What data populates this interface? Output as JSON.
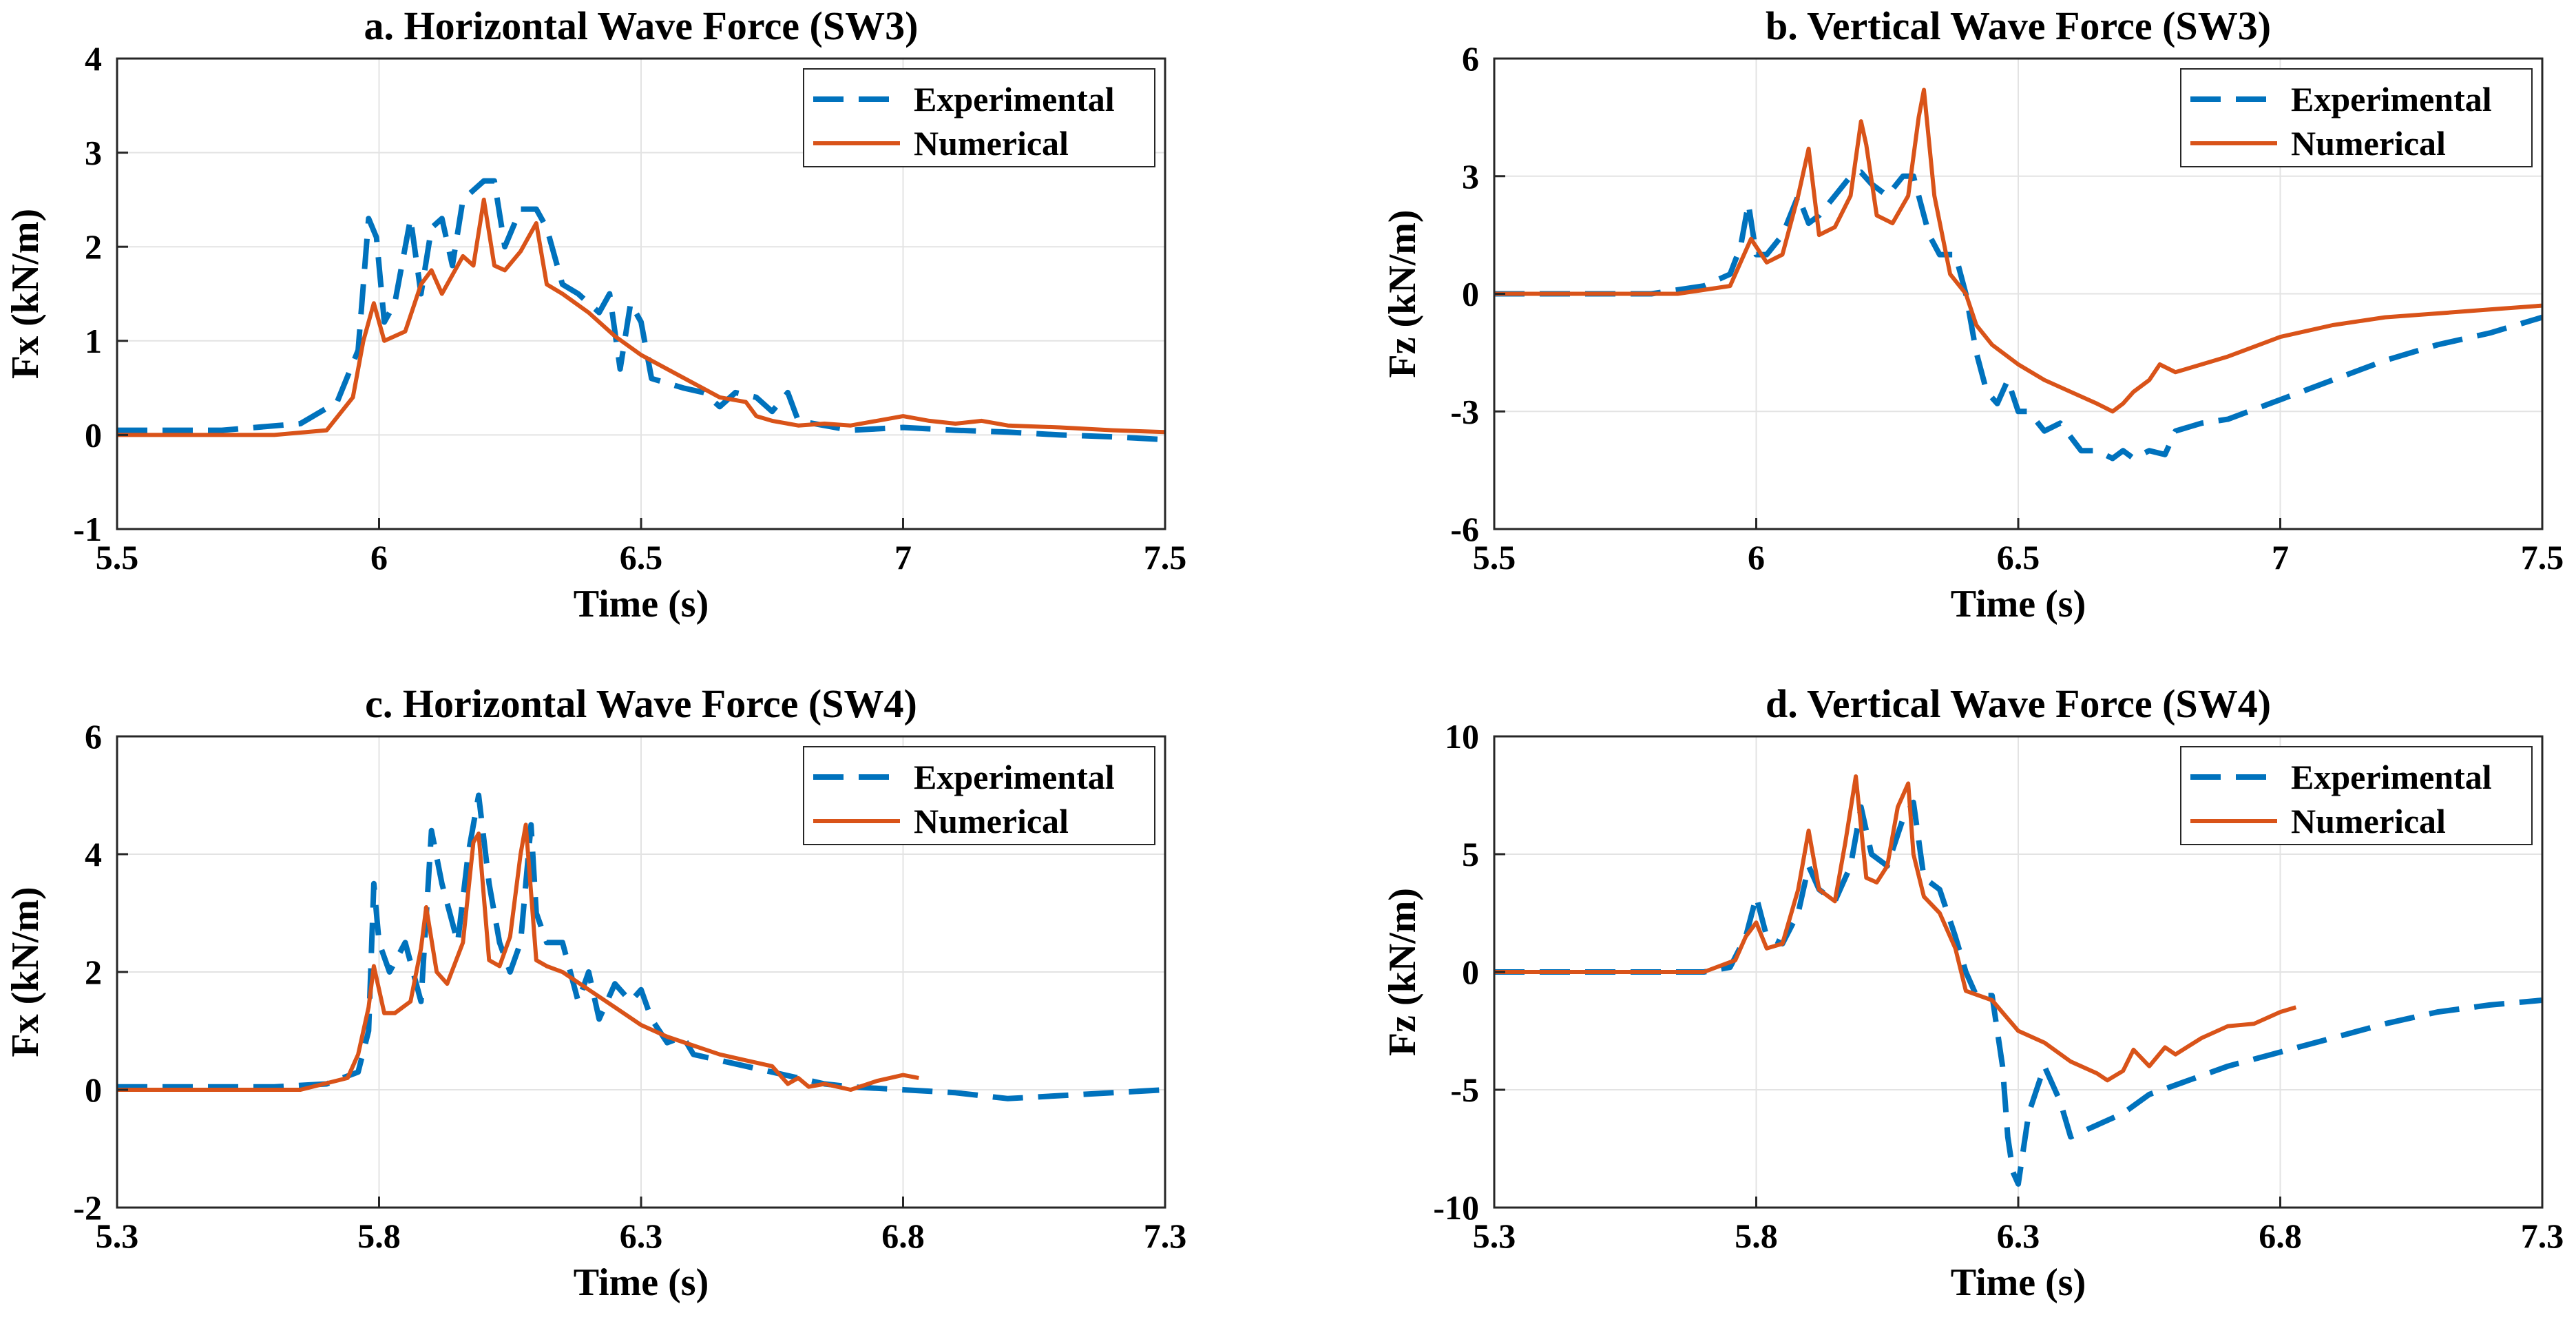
{
  "figure": {
    "description_colors": {
      "experimental": "#0072BD",
      "numerical": "#D95319"
    }
  },
  "chart_data": [
    {
      "type": "line",
      "title": "a. Horizontal Wave Force (SW3)",
      "xlabel": "Time (s)",
      "ylabel": "Fx (kN/m)",
      "xlim": [
        5.5,
        7.5
      ],
      "ylim": [
        -1,
        4
      ],
      "xticks": [
        5.5,
        6,
        6.5,
        7,
        7.5
      ],
      "xtick_labels": [
        "5.5",
        "6",
        "6.5",
        "7",
        "7.5"
      ],
      "yticks": [
        -1,
        0,
        1,
        2,
        3,
        4
      ],
      "ytick_labels": [
        "-1",
        "0",
        "1",
        "2",
        "3",
        "4"
      ],
      "grid": true,
      "legend": "top-right",
      "series": [
        {
          "name": "Experimental",
          "color": "#0072BD",
          "style": "dashed",
          "x": [
            5.5,
            5.7,
            5.85,
            5.92,
            5.96,
            5.98,
            5.995,
            6.01,
            6.03,
            6.06,
            6.08,
            6.1,
            6.12,
            6.14,
            6.16,
            6.18,
            6.2,
            6.22,
            6.24,
            6.27,
            6.3,
            6.32,
            6.35,
            6.38,
            6.4,
            6.42,
            6.44,
            6.46,
            6.48,
            6.5,
            6.52,
            6.55,
            6.58,
            6.62,
            6.65,
            6.68,
            6.72,
            6.75,
            6.78,
            6.8,
            6.85,
            6.9,
            7.0,
            7.1,
            7.2,
            7.3,
            7.4,
            7.5
          ],
          "y": [
            0.05,
            0.05,
            0.12,
            0.35,
            0.9,
            2.3,
            2.1,
            1.2,
            1.4,
            2.3,
            1.5,
            2.2,
            2.3,
            1.8,
            2.5,
            2.6,
            2.7,
            2.7,
            2.0,
            2.4,
            2.4,
            2.2,
            1.6,
            1.5,
            1.4,
            1.3,
            1.5,
            0.7,
            1.4,
            1.2,
            0.6,
            0.55,
            0.5,
            0.45,
            0.3,
            0.45,
            0.4,
            0.25,
            0.45,
            0.15,
            0.1,
            0.05,
            0.08,
            0.05,
            0.03,
            0.0,
            -0.02,
            -0.05
          ]
        },
        {
          "name": "Numerical",
          "color": "#D95319",
          "style": "solid",
          "x": [
            5.5,
            5.8,
            5.9,
            5.95,
            5.97,
            5.99,
            6.01,
            6.05,
            6.08,
            6.1,
            6.12,
            6.14,
            6.16,
            6.18,
            6.2,
            6.22,
            6.24,
            6.27,
            6.3,
            6.32,
            6.35,
            6.4,
            6.45,
            6.5,
            6.55,
            6.6,
            6.65,
            6.7,
            6.72,
            6.75,
            6.8,
            6.85,
            6.9,
            6.95,
            7.0,
            7.05,
            7.1,
            7.15,
            7.2,
            7.3,
            7.4,
            7.5
          ],
          "y": [
            0.0,
            0.0,
            0.05,
            0.4,
            1.0,
            1.4,
            1.0,
            1.1,
            1.6,
            1.75,
            1.5,
            1.7,
            1.9,
            1.8,
            2.5,
            1.8,
            1.75,
            1.95,
            2.25,
            1.6,
            1.5,
            1.3,
            1.05,
            0.85,
            0.7,
            0.55,
            0.4,
            0.35,
            0.2,
            0.15,
            0.1,
            0.12,
            0.1,
            0.15,
            0.2,
            0.15,
            0.12,
            0.15,
            0.1,
            0.08,
            0.05,
            0.03
          ]
        }
      ]
    },
    {
      "type": "line",
      "title": "b. Vertical Wave Force (SW3)",
      "xlabel": "Time (s)",
      "ylabel": "Fz (kN/m)",
      "xlim": [
        5.5,
        7.5
      ],
      "ylim": [
        -6,
        6
      ],
      "xticks": [
        5.5,
        6,
        6.5,
        7,
        7.5
      ],
      "xtick_labels": [
        "5.5",
        "6",
        "6.5",
        "7",
        "7.5"
      ],
      "yticks": [
        -6,
        -3,
        0,
        3,
        6
      ],
      "ytick_labels": [
        "-6",
        "-3",
        "0",
        "3",
        "6"
      ],
      "grid": true,
      "legend": "top-right",
      "series": [
        {
          "name": "Experimental",
          "color": "#0072BD",
          "style": "dashed",
          "x": [
            5.5,
            5.8,
            5.9,
            5.95,
            5.97,
            5.985,
            6.0,
            6.02,
            6.05,
            6.08,
            6.1,
            6.12,
            6.15,
            6.18,
            6.2,
            6.22,
            6.25,
            6.28,
            6.3,
            6.33,
            6.35,
            6.38,
            6.4,
            6.42,
            6.44,
            6.46,
            6.48,
            6.5,
            6.52,
            6.55,
            6.58,
            6.62,
            6.65,
            6.68,
            6.7,
            6.72,
            6.75,
            6.78,
            6.8,
            6.85,
            6.9,
            7.0,
            7.1,
            7.2,
            7.3,
            7.4,
            7.5
          ],
          "y": [
            0.0,
            0.0,
            0.2,
            0.5,
            1.2,
            2.3,
            1.0,
            1.0,
            1.5,
            2.5,
            1.8,
            2.0,
            2.5,
            3.0,
            3.1,
            2.8,
            2.5,
            3.0,
            3.0,
            1.5,
            1.0,
            1.0,
            0.0,
            -1.5,
            -2.5,
            -2.8,
            -2.2,
            -3.0,
            -3.0,
            -3.5,
            -3.3,
            -4.0,
            -4.0,
            -4.2,
            -4.0,
            -4.2,
            -4.0,
            -4.1,
            -3.5,
            -3.3,
            -3.2,
            -2.7,
            -2.2,
            -1.7,
            -1.3,
            -1.0,
            -0.6
          ]
        },
        {
          "name": "Numerical",
          "color": "#D95319",
          "style": "solid",
          "x": [
            5.5,
            5.85,
            5.95,
            5.97,
            5.99,
            6.02,
            6.05,
            6.08,
            6.1,
            6.12,
            6.15,
            6.18,
            6.2,
            6.21,
            6.23,
            6.26,
            6.29,
            6.31,
            6.32,
            6.34,
            6.37,
            6.4,
            6.42,
            6.45,
            6.5,
            6.55,
            6.6,
            6.65,
            6.68,
            6.7,
            6.72,
            6.75,
            6.77,
            6.8,
            6.85,
            6.9,
            7.0,
            7.1,
            7.2,
            7.3,
            7.4,
            7.5
          ],
          "y": [
            0.0,
            0.0,
            0.2,
            0.8,
            1.4,
            0.8,
            1.0,
            2.5,
            3.7,
            1.5,
            1.7,
            2.5,
            4.4,
            3.8,
            2.0,
            1.8,
            2.5,
            4.5,
            5.2,
            2.5,
            0.5,
            0.0,
            -0.8,
            -1.3,
            -1.8,
            -2.2,
            -2.5,
            -2.8,
            -3.0,
            -2.8,
            -2.5,
            -2.2,
            -1.8,
            -2.0,
            -1.8,
            -1.6,
            -1.1,
            -0.8,
            -0.6,
            -0.5,
            -0.4,
            -0.3
          ]
        }
      ]
    },
    {
      "type": "line",
      "title": "c. Horizontal Wave Force (SW4)",
      "xlabel": "Time (s)",
      "ylabel": "Fx (kN/m)",
      "xlim": [
        5.3,
        7.3
      ],
      "ylim": [
        -2,
        6
      ],
      "xticks": [
        5.3,
        5.8,
        6.3,
        6.8,
        7.3
      ],
      "xtick_labels": [
        "5.3",
        "5.8",
        "6.3",
        "6.8",
        "7.3"
      ],
      "yticks": [
        -2,
        0,
        2,
        4,
        6
      ],
      "ytick_labels": [
        "-2",
        "0",
        "2",
        "4",
        "6"
      ],
      "grid": true,
      "legend": "top-right",
      "series": [
        {
          "name": "Experimental",
          "color": "#0072BD",
          "style": "dashed",
          "x": [
            5.3,
            5.6,
            5.7,
            5.76,
            5.78,
            5.79,
            5.8,
            5.82,
            5.85,
            5.88,
            5.9,
            5.92,
            5.95,
            5.97,
            5.99,
            6.01,
            6.03,
            6.05,
            6.07,
            6.09,
            6.1,
            6.12,
            6.15,
            6.18,
            6.2,
            6.22,
            6.25,
            6.28,
            6.3,
            6.32,
            6.35,
            6.38,
            6.4,
            6.45,
            6.5,
            6.55,
            6.6,
            6.65,
            6.7,
            6.8,
            6.9,
            7.0,
            7.1,
            7.2,
            7.3
          ],
          "y": [
            0.05,
            0.05,
            0.1,
            0.3,
            1.0,
            3.5,
            2.5,
            2.0,
            2.5,
            1.5,
            4.4,
            3.5,
            2.5,
            4.0,
            5.0,
            3.5,
            2.5,
            2.0,
            2.5,
            4.5,
            3.0,
            2.5,
            2.5,
            1.5,
            2.0,
            1.2,
            1.8,
            1.5,
            1.7,
            1.2,
            0.8,
            0.9,
            0.6,
            0.5,
            0.4,
            0.3,
            0.2,
            0.1,
            0.05,
            0.0,
            -0.05,
            -0.15,
            -0.1,
            -0.05,
            0.0
          ]
        },
        {
          "name": "Numerical",
          "color": "#D95319",
          "style": "solid",
          "x": [
            5.3,
            5.65,
            5.74,
            5.76,
            5.78,
            5.79,
            5.81,
            5.83,
            5.86,
            5.88,
            5.89,
            5.91,
            5.93,
            5.96,
            5.98,
            5.99,
            6.01,
            6.03,
            6.05,
            6.07,
            6.08,
            6.1,
            6.12,
            6.15,
            6.2,
            6.25,
            6.3,
            6.35,
            6.4,
            6.45,
            6.5,
            6.55,
            6.58,
            6.6,
            6.62,
            6.65,
            6.7,
            6.75,
            6.8,
            6.83
          ],
          "y": [
            0.0,
            0.0,
            0.2,
            0.6,
            1.4,
            2.1,
            1.3,
            1.3,
            1.5,
            2.4,
            3.1,
            2.0,
            1.8,
            2.5,
            4.2,
            4.35,
            2.2,
            2.1,
            2.6,
            4.0,
            4.5,
            2.2,
            2.1,
            2.0,
            1.7,
            1.4,
            1.1,
            0.9,
            0.75,
            0.6,
            0.5,
            0.4,
            0.1,
            0.2,
            0.05,
            0.1,
            0.0,
            0.15,
            0.25,
            0.2
          ]
        }
      ]
    },
    {
      "type": "line",
      "title": "d. Vertical Wave Force (SW4)",
      "xlabel": "Time (s)",
      "ylabel": "Fz (kN/m)",
      "xlim": [
        5.3,
        7.3
      ],
      "ylim": [
        -10,
        10
      ],
      "xticks": [
        5.3,
        5.8,
        6.3,
        6.8,
        7.3
      ],
      "xtick_labels": [
        "5.3",
        "5.8",
        "6.3",
        "6.8",
        "7.3"
      ],
      "yticks": [
        -10,
        -5,
        0,
        5,
        10
      ],
      "ytick_labels": [
        "-10",
        "-5",
        "0",
        "5",
        "10"
      ],
      "grid": true,
      "legend": "top-right",
      "series": [
        {
          "name": "Experimental",
          "color": "#0072BD",
          "style": "dashed",
          "x": [
            5.3,
            5.7,
            5.75,
            5.78,
            5.8,
            5.82,
            5.85,
            5.88,
            5.9,
            5.92,
            5.95,
            5.98,
            6.0,
            6.02,
            6.05,
            6.08,
            6.1,
            6.12,
            6.15,
            6.18,
            6.2,
            6.22,
            6.25,
            6.27,
            6.28,
            6.29,
            6.3,
            6.32,
            6.35,
            6.38,
            6.4,
            6.42,
            6.45,
            6.5,
            6.55,
            6.6,
            6.7,
            6.8,
            6.9,
            7.0,
            7.1,
            7.2,
            7.3
          ],
          "y": [
            0.0,
            0.0,
            0.2,
            1.5,
            3.2,
            1.5,
            1.2,
            2.5,
            4.5,
            3.5,
            3.0,
            4.5,
            7.0,
            5.0,
            4.5,
            6.5,
            7.2,
            4.0,
            3.5,
            1.5,
            0.0,
            -1.0,
            -1.0,
            -4.0,
            -7.0,
            -8.5,
            -9.0,
            -6.0,
            -4.0,
            -5.5,
            -7.0,
            -6.8,
            -6.5,
            -6.0,
            -5.2,
            -4.8,
            -4.0,
            -3.4,
            -2.8,
            -2.2,
            -1.7,
            -1.4,
            -1.2
          ]
        },
        {
          "name": "Numerical",
          "color": "#D95319",
          "style": "solid",
          "x": [
            5.3,
            5.7,
            5.76,
            5.78,
            5.8,
            5.82,
            5.85,
            5.88,
            5.9,
            5.92,
            5.95,
            5.97,
            5.99,
            6.01,
            6.03,
            6.05,
            6.07,
            6.09,
            6.1,
            6.12,
            6.15,
            6.18,
            6.2,
            6.25,
            6.3,
            6.35,
            6.4,
            6.45,
            6.47,
            6.5,
            6.52,
            6.55,
            6.58,
            6.6,
            6.65,
            6.7,
            6.75,
            6.8,
            6.83
          ],
          "y": [
            0.0,
            0.0,
            0.5,
            1.5,
            2.1,
            1.0,
            1.2,
            3.5,
            6.0,
            3.5,
            3.0,
            5.5,
            8.3,
            4.0,
            3.8,
            4.5,
            7.0,
            8.0,
            5.0,
            3.2,
            2.5,
            1.0,
            -0.8,
            -1.2,
            -2.5,
            -3.0,
            -3.8,
            -4.3,
            -4.6,
            -4.2,
            -3.3,
            -4.0,
            -3.2,
            -3.5,
            -2.8,
            -2.3,
            -2.2,
            -1.7,
            -1.5
          ]
        }
      ]
    }
  ]
}
